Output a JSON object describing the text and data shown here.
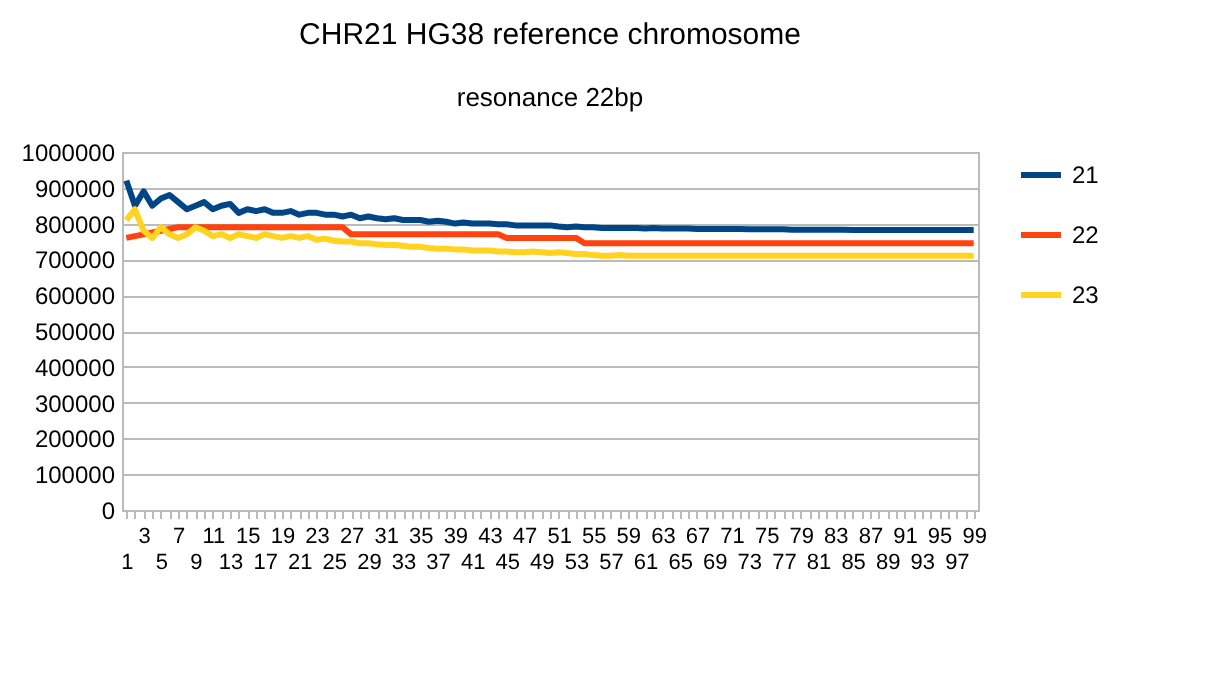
{
  "chart_data": {
    "type": "line",
    "title": "CHR21 HG38 reference chromosome",
    "subtitle": "resonance 22bp",
    "categories": [
      "1",
      null,
      "3",
      null,
      "5",
      null,
      "7",
      null,
      "9",
      null,
      "11",
      null,
      "13",
      null,
      "15",
      null,
      "17",
      null,
      "19",
      null,
      "21",
      null,
      "23",
      null,
      "25",
      null,
      "27",
      null,
      "29",
      null,
      "31",
      null,
      "33",
      null,
      "35",
      null,
      "37",
      null,
      "39",
      null,
      "41",
      null,
      "43",
      null,
      "45",
      null,
      "47",
      null,
      "49",
      null,
      "51",
      null,
      "53",
      null,
      "55",
      null,
      "57",
      null,
      "59",
      null,
      "61",
      null,
      "63",
      null,
      "65",
      null,
      "67",
      null,
      "69",
      null,
      "71",
      null,
      "73",
      null,
      "75",
      null,
      "77",
      null,
      "79",
      null,
      "81",
      null,
      "83",
      null,
      "85",
      null,
      "87",
      null,
      "89",
      null,
      "91",
      null,
      "93",
      null,
      "95",
      null,
      "97",
      null,
      "99"
    ],
    "series": [
      {
        "name": "21",
        "color": "#004586",
        "values": [
          920000,
          850000,
          890000,
          850000,
          870000,
          880000,
          860000,
          840000,
          850000,
          860000,
          840000,
          850000,
          855000,
          830000,
          840000,
          835000,
          840000,
          830000,
          830000,
          835000,
          825000,
          830000,
          830000,
          825000,
          825000,
          820000,
          825000,
          815000,
          820000,
          815000,
          812000,
          815000,
          810000,
          810000,
          810000,
          805000,
          808000,
          805000,
          800000,
          803000,
          800000,
          800000,
          800000,
          798000,
          798000,
          795000,
          795000,
          795000,
          795000,
          795000,
          792000,
          790000,
          792000,
          790000,
          790000,
          788000,
          788000,
          788000,
          788000,
          788000,
          786000,
          788000,
          786000,
          786000,
          786000,
          786000,
          785000,
          785000,
          785000,
          785000,
          785000,
          785000,
          784000,
          784000,
          784000,
          784000,
          784000,
          783000,
          783000,
          783000,
          783000,
          783000,
          783000,
          783000,
          782000,
          782000,
          782000,
          782000,
          782000,
          782000,
          782000,
          782000,
          782000,
          782000,
          782000,
          782000,
          782000,
          782000,
          782000
        ]
      },
      {
        "name": "22",
        "color": "#ff420e",
        "values": [
          760000,
          765000,
          770000,
          775000,
          780000,
          785000,
          790000,
          790000,
          790000,
          790000,
          790000,
          790000,
          790000,
          790000,
          790000,
          790000,
          790000,
          790000,
          790000,
          790000,
          790000,
          790000,
          790000,
          790000,
          790000,
          790000,
          770000,
          770000,
          770000,
          770000,
          770000,
          770000,
          770000,
          770000,
          770000,
          770000,
          770000,
          770000,
          770000,
          770000,
          770000,
          770000,
          770000,
          770000,
          760000,
          760000,
          760000,
          760000,
          760000,
          760000,
          760000,
          760000,
          760000,
          745000,
          745000,
          745000,
          745000,
          745000,
          745000,
          745000,
          745000,
          745000,
          745000,
          745000,
          745000,
          745000,
          745000,
          745000,
          745000,
          745000,
          745000,
          745000,
          745000,
          745000,
          745000,
          745000,
          745000,
          745000,
          745000,
          745000,
          745000,
          745000,
          745000,
          745000,
          745000,
          745000,
          745000,
          745000,
          745000,
          745000,
          745000,
          745000,
          745000,
          745000,
          745000,
          745000,
          745000,
          745000,
          745000
        ]
      },
      {
        "name": "23",
        "color": "#ffd320",
        "values": [
          810000,
          840000,
          780000,
          760000,
          790000,
          770000,
          760000,
          770000,
          790000,
          780000,
          765000,
          770000,
          760000,
          770000,
          765000,
          760000,
          770000,
          765000,
          760000,
          765000,
          760000,
          765000,
          755000,
          758000,
          752000,
          750000,
          750000,
          745000,
          745000,
          742000,
          740000,
          740000,
          738000,
          735000,
          735000,
          732000,
          730000,
          730000,
          728000,
          728000,
          725000,
          725000,
          725000,
          722000,
          722000,
          720000,
          720000,
          722000,
          720000,
          718000,
          720000,
          718000,
          715000,
          715000,
          712000,
          710000,
          710000,
          712000,
          710000,
          710000,
          710000,
          710000,
          710000,
          710000,
          710000,
          710000,
          710000,
          710000,
          710000,
          710000,
          710000,
          710000,
          710000,
          710000,
          710000,
          710000,
          710000,
          710000,
          710000,
          710000,
          710000,
          710000,
          710000,
          710000,
          710000,
          710000,
          710000,
          710000,
          710000,
          710000,
          710000,
          710000,
          710000,
          710000,
          710000,
          710000,
          710000,
          710000,
          710000
        ]
      }
    ],
    "ylim": [
      0,
      1000000
    ],
    "yticks": [
      0,
      100000,
      200000,
      300000,
      400000,
      500000,
      600000,
      700000,
      800000,
      900000,
      1000000
    ],
    "grid": "y",
    "legend": "right",
    "marker": "none",
    "line_style": "solid"
  }
}
